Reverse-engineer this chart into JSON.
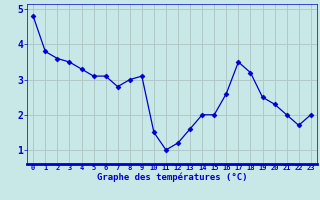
{
  "hours": [
    0,
    1,
    2,
    3,
    4,
    5,
    6,
    7,
    8,
    9,
    10,
    11,
    12,
    13,
    14,
    15,
    16,
    17,
    18,
    19,
    20,
    21,
    22,
    23
  ],
  "temps": [
    4.8,
    3.8,
    3.6,
    3.5,
    3.3,
    3.1,
    3.1,
    2.8,
    3.0,
    3.1,
    1.5,
    1.0,
    1.2,
    1.6,
    2.0,
    2.0,
    2.6,
    3.5,
    3.2,
    2.5,
    2.3,
    2.0,
    1.7,
    2.0
  ],
  "line_color": "#0000cc",
  "marker_color": "#0000cc",
  "bg_color": "#c8e8e8",
  "plot_bg_color": "#c8e8e8",
  "grid_color": "#b0c8c8",
  "xlabel": "Graphe des températures (°C)",
  "xlabel_color": "#0000cc",
  "tick_color": "#0000cc",
  "axis_bottom_color": "#0000cc",
  "ylim": [
    0.6,
    5.15
  ],
  "yticks": [
    1,
    2,
    3,
    4,
    5
  ],
  "xticks": [
    0,
    1,
    2,
    3,
    4,
    5,
    6,
    7,
    8,
    9,
    10,
    11,
    12,
    13,
    14,
    15,
    16,
    17,
    18,
    19,
    20,
    21,
    22,
    23
  ]
}
